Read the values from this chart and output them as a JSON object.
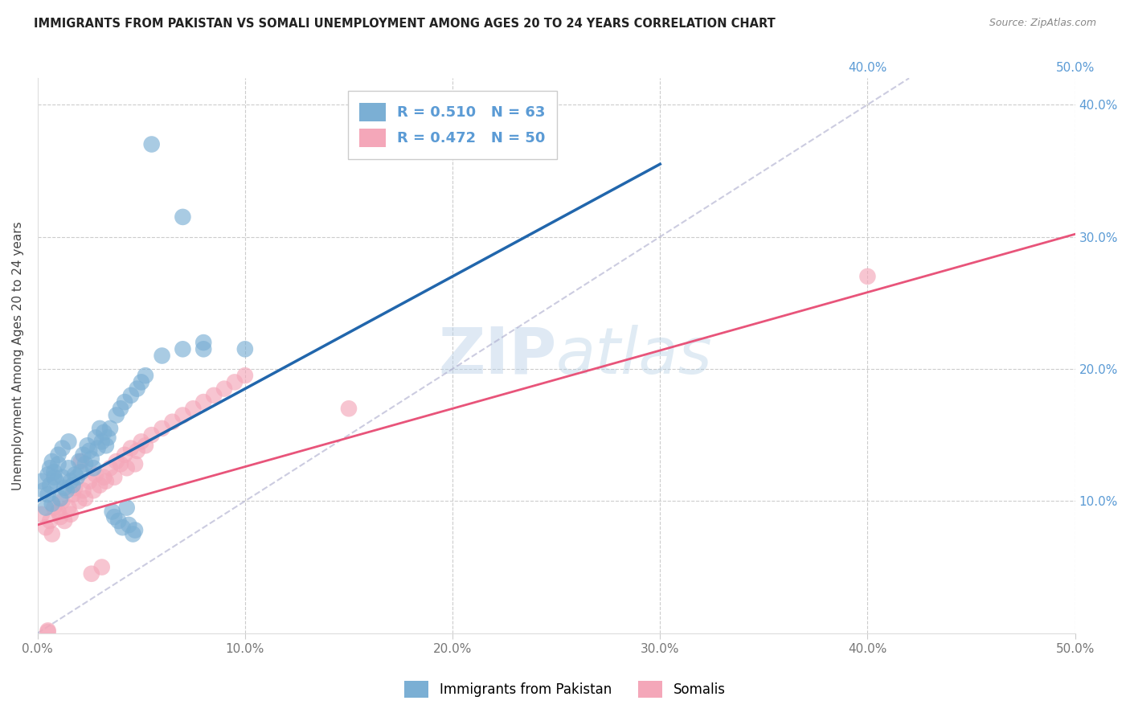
{
  "title": "IMMIGRANTS FROM PAKISTAN VS SOMALI UNEMPLOYMENT AMONG AGES 20 TO 24 YEARS CORRELATION CHART",
  "source": "Source: ZipAtlas.com",
  "ylabel": "Unemployment Among Ages 20 to 24 years",
  "xlim": [
    0,
    0.5
  ],
  "ylim": [
    0,
    0.42
  ],
  "xticks": [
    0.0,
    0.1,
    0.2,
    0.3,
    0.4,
    0.5
  ],
  "yticks": [
    0.1,
    0.2,
    0.3,
    0.4
  ],
  "xticklabels": [
    "0.0%",
    "10.0%",
    "20.0%",
    "30.0%",
    "40.0%",
    "50.0%"
  ],
  "yticklabels": [
    "10.0%",
    "20.0%",
    "30.0%",
    "40.0%"
  ],
  "right_yticklabels": [
    "10.0%",
    "20.0%",
    "30.0%",
    "40.0%"
  ],
  "top_xticklabels": [
    "40.0%",
    "50.0%"
  ],
  "legend_labels": [
    "Immigrants from Pakistan",
    "Somalis"
  ],
  "legend_R": [
    0.51,
    0.472
  ],
  "legend_N": [
    63,
    50
  ],
  "blue_color": "#7BAFD4",
  "pink_color": "#F4A7B9",
  "blue_line_color": "#2166AC",
  "pink_line_color": "#E8547A",
  "watermark": "ZIPAtlas",
  "watermark_color": "#B8D4E8",
  "blue_scatter_x": [
    0.002,
    0.003,
    0.004,
    0.005,
    0.005,
    0.006,
    0.006,
    0.007,
    0.007,
    0.008,
    0.008,
    0.009,
    0.01,
    0.01,
    0.011,
    0.012,
    0.012,
    0.013,
    0.014,
    0.015,
    0.015,
    0.016,
    0.017,
    0.018,
    0.019,
    0.02,
    0.021,
    0.022,
    0.023,
    0.024,
    0.025,
    0.026,
    0.027,
    0.028,
    0.029,
    0.03,
    0.031,
    0.032,
    0.033,
    0.034,
    0.035,
    0.036,
    0.037,
    0.038,
    0.039,
    0.04,
    0.041,
    0.042,
    0.043,
    0.044,
    0.045,
    0.046,
    0.047,
    0.048,
    0.05,
    0.052,
    0.06,
    0.07,
    0.08,
    0.1,
    0.055,
    0.07,
    0.08
  ],
  "blue_scatter_y": [
    0.115,
    0.108,
    0.095,
    0.12,
    0.105,
    0.112,
    0.125,
    0.098,
    0.13,
    0.118,
    0.122,
    0.115,
    0.128,
    0.135,
    0.102,
    0.14,
    0.118,
    0.11,
    0.108,
    0.125,
    0.145,
    0.115,
    0.112,
    0.12,
    0.118,
    0.13,
    0.122,
    0.135,
    0.128,
    0.142,
    0.138,
    0.132,
    0.125,
    0.148,
    0.14,
    0.155,
    0.145,
    0.152,
    0.142,
    0.148,
    0.155,
    0.092,
    0.088,
    0.165,
    0.085,
    0.17,
    0.08,
    0.175,
    0.095,
    0.082,
    0.18,
    0.075,
    0.078,
    0.185,
    0.19,
    0.195,
    0.21,
    0.215,
    0.22,
    0.215,
    0.37,
    0.315,
    0.215
  ],
  "pink_scatter_x": [
    0.002,
    0.004,
    0.005,
    0.006,
    0.007,
    0.008,
    0.01,
    0.011,
    0.012,
    0.013,
    0.015,
    0.016,
    0.017,
    0.018,
    0.02,
    0.021,
    0.022,
    0.023,
    0.025,
    0.026,
    0.027,
    0.028,
    0.03,
    0.031,
    0.032,
    0.033,
    0.035,
    0.037,
    0.038,
    0.04,
    0.042,
    0.043,
    0.045,
    0.047,
    0.048,
    0.05,
    0.052,
    0.055,
    0.06,
    0.065,
    0.07,
    0.075,
    0.08,
    0.085,
    0.09,
    0.095,
    0.1,
    0.15,
    0.005,
    0.4
  ],
  "pink_scatter_y": [
    0.09,
    0.08,
    0.002,
    0.085,
    0.075,
    0.095,
    0.092,
    0.088,
    0.1,
    0.085,
    0.095,
    0.09,
    0.105,
    0.11,
    0.1,
    0.13,
    0.108,
    0.102,
    0.115,
    0.045,
    0.108,
    0.12,
    0.112,
    0.05,
    0.118,
    0.115,
    0.125,
    0.118,
    0.13,
    0.128,
    0.135,
    0.125,
    0.14,
    0.128,
    0.138,
    0.145,
    0.142,
    0.15,
    0.155,
    0.16,
    0.165,
    0.17,
    0.175,
    0.18,
    0.185,
    0.19,
    0.195,
    0.17,
    0.001,
    0.27
  ],
  "grid_color": "#CCCCCC",
  "background_color": "#FFFFFF",
  "title_fontsize": 10.5,
  "axis_tick_color": "#5B9BD5",
  "axis_tick_fontsize": 11,
  "blue_line_x": [
    0.0,
    0.3
  ],
  "blue_line_y": [
    0.1,
    0.355
  ],
  "pink_line_x": [
    0.0,
    0.5
  ],
  "pink_line_y": [
    0.082,
    0.302
  ],
  "diag_line_x": [
    0.0,
    0.42
  ],
  "diag_line_y": [
    0.0,
    0.42
  ]
}
